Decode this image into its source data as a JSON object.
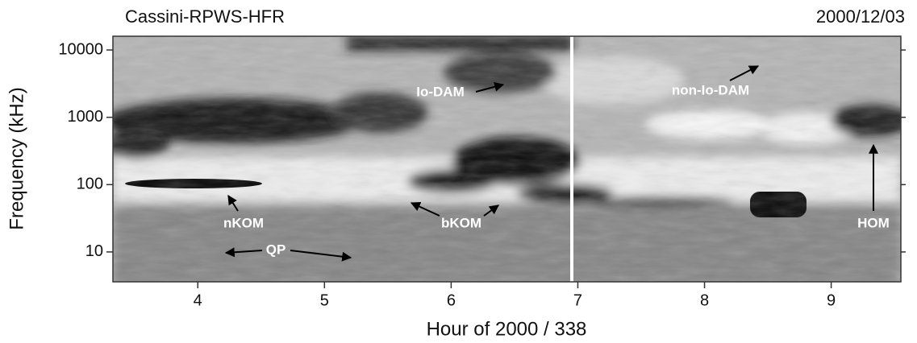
{
  "chart_data": {
    "type": "spectrogram",
    "title": "Cassini-RPWS-HFR",
    "subtitle": "2000/12/03",
    "x_label": "Hour of 2000 / 338",
    "y_label": "Frequency (kHz)",
    "xlim": [
      3.33,
      9.55
    ],
    "xticks": [
      4,
      5,
      6,
      7,
      8,
      9
    ],
    "ylim": [
      3.6,
      16000
    ],
    "yticks": [
      10,
      100,
      1000,
      10000
    ],
    "log_y": true,
    "annotations": [
      {
        "text": "Io-DAM"
      },
      {
        "text": "non-Io-DAM"
      },
      {
        "text": "nKOM"
      },
      {
        "text": "bKOM"
      },
      {
        "text": "QP"
      },
      {
        "text": "HOM"
      }
    ]
  }
}
